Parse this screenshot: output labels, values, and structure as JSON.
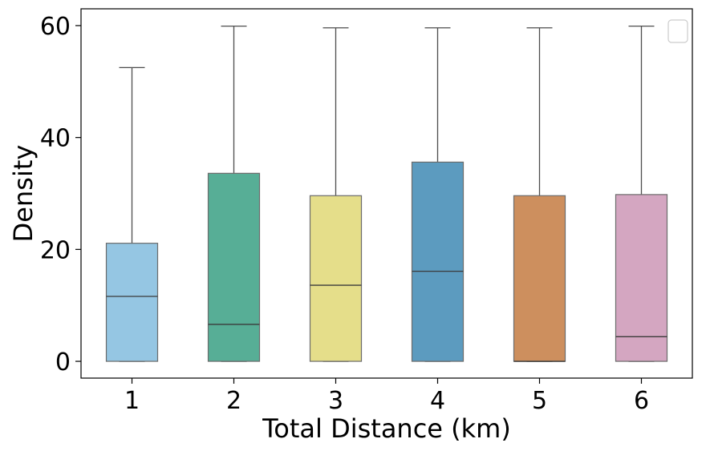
{
  "chart_data": {
    "type": "box",
    "title": "",
    "xlabel": "Total Distance (km)",
    "ylabel": "Density",
    "categories": [
      "1",
      "2",
      "3",
      "4",
      "5",
      "6"
    ],
    "ylim": [
      -3,
      63
    ],
    "yticks": [
      0,
      20,
      40,
      60
    ],
    "grid": false,
    "legend": {
      "placement": "top-right",
      "entries": []
    },
    "colors": [
      "#95c6e3",
      "#57ae96",
      "#e5de8a",
      "#5c9bbf",
      "#cd8f5e",
      "#d4a6c1"
    ],
    "boxes": [
      {
        "category": "1",
        "min": 0,
        "q1": 0,
        "median": 11.6,
        "q3": 21.1,
        "max": 52.5
      },
      {
        "category": "2",
        "min": 0,
        "q1": 0,
        "median": 6.6,
        "q3": 33.6,
        "max": 59.9
      },
      {
        "category": "3",
        "min": 0,
        "q1": 0,
        "median": 13.6,
        "q3": 29.6,
        "max": 59.6
      },
      {
        "category": "4",
        "min": 0,
        "q1": 0,
        "median": 16.1,
        "q3": 35.6,
        "max": 59.6
      },
      {
        "category": "5",
        "min": 0,
        "q1": 0,
        "median": 0,
        "q3": 29.6,
        "max": 59.6
      },
      {
        "category": "6",
        "min": 0,
        "q1": 0,
        "median": 4.4,
        "q3": 29.8,
        "max": 59.9
      }
    ]
  }
}
